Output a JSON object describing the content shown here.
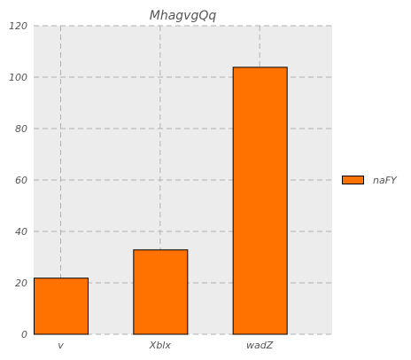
{
  "chart_data": {
    "type": "bar",
    "title": "MhagvgQq",
    "xlabel": "",
    "ylabel": "",
    "categories": [
      "v",
      "Xblx",
      "wadZ"
    ],
    "series": [
      {
        "name": "naFY",
        "values": [
          22,
          33,
          104
        ]
      }
    ],
    "ylim": [
      0,
      120
    ],
    "yticks": [
      0,
      20,
      40,
      60,
      80,
      100,
      120
    ],
    "grid": true,
    "legend_position": "right",
    "colors": {
      "bar": "#ff7200",
      "bar_edge": "#000000",
      "plot_background": "#ececec",
      "grid": "#b0b0b0"
    }
  }
}
